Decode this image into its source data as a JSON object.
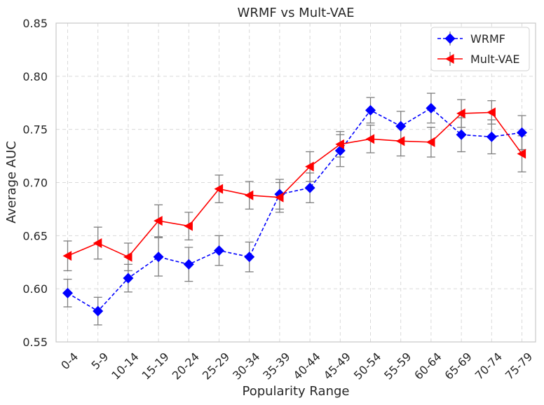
{
  "chart_data": {
    "type": "line",
    "title": "WRMF vs Mult-VAE",
    "xlabel": "Popularity Range",
    "ylabel": "Average AUC",
    "ylim": [
      0.55,
      0.85
    ],
    "yticks": [
      "0.55",
      "0.60",
      "0.65",
      "0.70",
      "0.75",
      "0.80",
      "0.85"
    ],
    "grid": true,
    "legend_position": "top-right",
    "categories": [
      "0-4",
      "5-9",
      "10-14",
      "15-19",
      "20-24",
      "25-29",
      "30-34",
      "35-39",
      "40-44",
      "45-49",
      "50-54",
      "55-59",
      "60-64",
      "65-69",
      "70-74",
      "75-79"
    ],
    "series": [
      {
        "name": "WRMF",
        "color": "#0000ff",
        "line_style": "dashed",
        "marker": "diamond",
        "values": [
          0.596,
          0.579,
          0.61,
          0.63,
          0.623,
          0.636,
          0.63,
          0.689,
          0.695,
          0.73,
          0.768,
          0.753,
          0.77,
          0.745,
          0.743,
          0.747
        ],
        "error": [
          0.013,
          0.013,
          0.013,
          0.018,
          0.016,
          0.014,
          0.014,
          0.014,
          0.014,
          0.015,
          0.012,
          0.014,
          0.014,
          0.016,
          0.016,
          0.016
        ]
      },
      {
        "name": "Mult-VAE",
        "color": "#ff0000",
        "line_style": "solid",
        "marker": "triangle-left",
        "values": [
          0.631,
          0.643,
          0.63,
          0.664,
          0.659,
          0.694,
          0.688,
          0.686,
          0.715,
          0.736,
          0.741,
          0.739,
          0.738,
          0.765,
          0.766,
          0.727
        ],
        "error": [
          0.014,
          0.015,
          0.013,
          0.015,
          0.013,
          0.013,
          0.013,
          0.014,
          0.014,
          0.012,
          0.013,
          0.014,
          0.014,
          0.013,
          0.011,
          0.017
        ]
      }
    ]
  }
}
